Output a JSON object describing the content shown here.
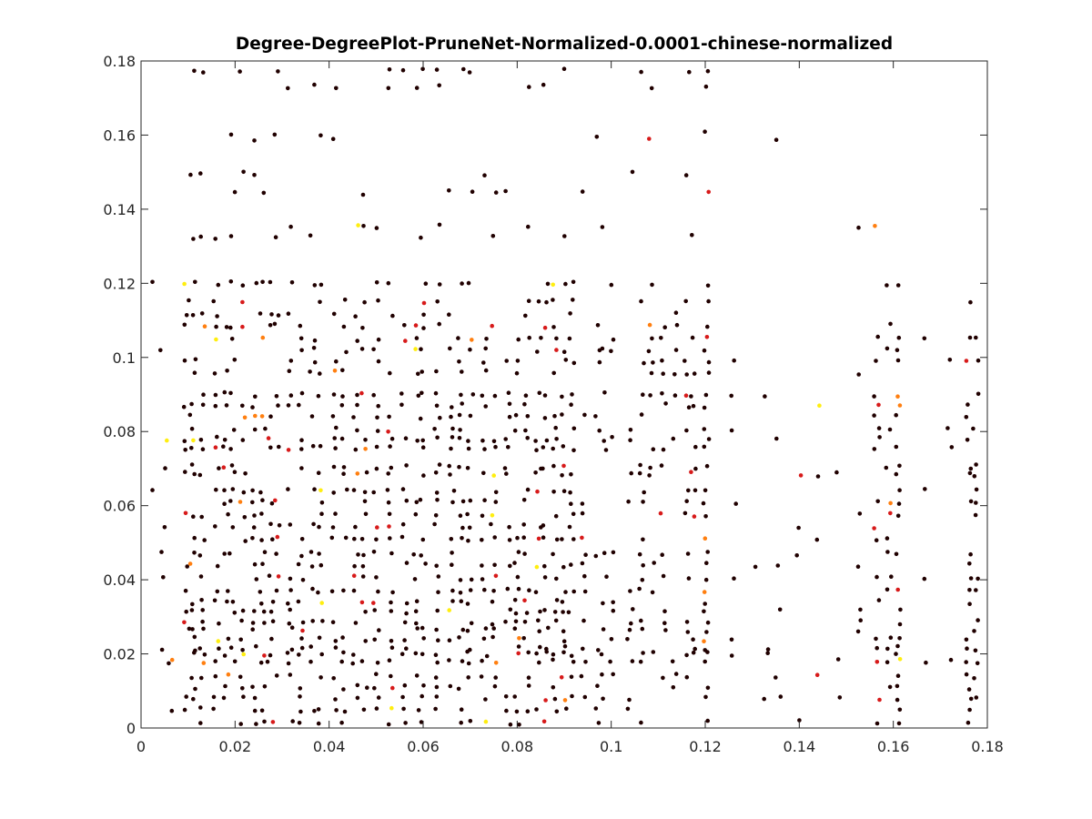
{
  "chart_data": {
    "type": "scatter",
    "title": "Degree-DegreePlot-PruneNet-Normalized-0.0001-chinese-normalized",
    "xlabel": "",
    "ylabel": "",
    "xlim": [
      0,
      0.18
    ],
    "ylim": [
      0,
      0.18
    ],
    "x_ticks": [
      "0",
      "0.02",
      "0.04",
      "0.06",
      "0.08",
      "0.1",
      "0.12",
      "0.14",
      "0.16",
      "0.18"
    ],
    "y_ticks": [
      "0",
      "0.02",
      "0.04",
      "0.06",
      "0.08",
      "0.1",
      "0.12",
      "0.14",
      "0.16",
      "0.18"
    ],
    "x_tick_values": [
      0,
      0.02,
      0.04,
      0.06,
      0.08,
      0.1,
      0.12,
      0.14,
      0.16,
      0.18
    ],
    "y_tick_values": [
      0,
      0.02,
      0.04,
      0.06,
      0.08,
      0.1,
      0.12,
      0.14,
      0.16,
      0.18
    ],
    "grid": false,
    "legend": "none",
    "colormap": "hot (dark red to yellow)",
    "colors": {
      "dominant": "#200000",
      "mid": "#d71a1a",
      "warm": "#ff7f10",
      "bright": "#ffee10"
    },
    "point_columns_x": [
      0.0023,
      0.0046,
      0.0055,
      0.0065,
      0.0097,
      0.011,
      0.013,
      0.016,
      0.018,
      0.0194,
      0.0216,
      0.024,
      0.0258,
      0.0275,
      0.029,
      0.0317,
      0.034,
      0.0365,
      0.038,
      0.041,
      0.0433,
      0.0456,
      0.0475,
      0.05,
      0.053,
      0.056,
      0.0585,
      0.06,
      0.063,
      0.066,
      0.068,
      0.07,
      0.073,
      0.075,
      0.078,
      0.08,
      0.082,
      0.0845,
      0.086,
      0.088,
      0.09,
      0.0915,
      0.094,
      0.097,
      0.0985,
      0.1,
      0.104,
      0.1065,
      0.1085,
      0.111,
      0.1135,
      0.116,
      0.1175,
      0.1202,
      0.126,
      0.131,
      0.133,
      0.1355,
      0.14,
      0.144,
      0.148,
      0.1525,
      0.1565,
      0.159,
      0.161,
      0.1665,
      0.172,
      0.176,
      0.1775
    ],
    "point_rows_y": [
      0.0015,
      0.005,
      0.008,
      0.011,
      0.014,
      0.018,
      0.02,
      0.0215,
      0.024,
      0.0265,
      0.0285,
      0.0315,
      0.034,
      0.037,
      0.0405,
      0.044,
      0.047,
      0.051,
      0.0545,
      0.0575,
      0.061,
      0.064,
      0.0685,
      0.0705,
      0.0755,
      0.078,
      0.0805,
      0.084,
      0.087,
      0.09,
      0.096,
      0.099,
      0.102,
      0.105,
      0.1085,
      0.1115,
      0.115,
      0.12,
      0.1325,
      0.1355,
      0.1445,
      0.1495,
      0.159,
      0.1605,
      0.173,
      0.1775
    ]
  }
}
